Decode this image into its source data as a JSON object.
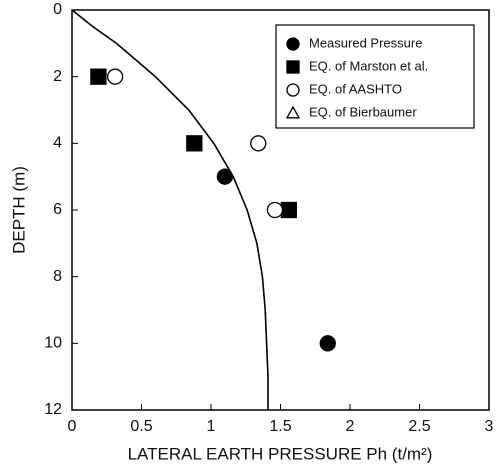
{
  "chart_data": {
    "type": "scatter",
    "xlabel": "LATERAL EARTH PRESSURE Ph (t/m²)",
    "ylabel": "DEPTH (m)",
    "xlim": [
      0,
      3
    ],
    "ylim": [
      0,
      12
    ],
    "y_inverted": true,
    "xticks": [
      0,
      0.5,
      1,
      1.5,
      2,
      2.5,
      3
    ],
    "yticks": [
      0,
      2,
      4,
      6,
      8,
      10,
      12
    ],
    "legend": "upper right",
    "series": [
      {
        "name": "Measured Pressure",
        "marker": "circle",
        "filled": true,
        "color": "#000000",
        "x": [
          1.1,
          1.84
        ],
        "values": [
          5,
          10
        ]
      },
      {
        "name": "EQ. of Marston et al.",
        "marker": "square",
        "filled": true,
        "color": "#000000",
        "x": [
          0.19,
          0.88,
          1.56
        ],
        "values": [
          2,
          4,
          6
        ]
      },
      {
        "name": "EQ. of AASHTO",
        "marker": "circle",
        "filled": false,
        "color": "#000000",
        "x": [
          0.31,
          1.34,
          1.46
        ],
        "values": [
          2,
          4,
          6
        ]
      },
      {
        "name": "EQ. of Bierbaumer",
        "marker": "triangle",
        "filled": false,
        "line": true,
        "color": "#000000",
        "x": [
          0,
          0.15,
          0.32,
          0.6,
          0.84,
          1.02,
          1.16,
          1.26,
          1.33,
          1.37,
          1.39,
          1.4,
          1.41,
          1.41
        ],
        "values": [
          0,
          0.5,
          1,
          2,
          3,
          4,
          5,
          6,
          7,
          8,
          9,
          10,
          11,
          12
        ]
      }
    ]
  }
}
